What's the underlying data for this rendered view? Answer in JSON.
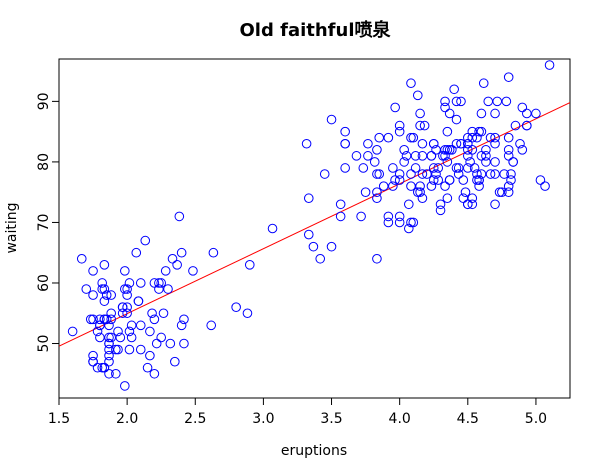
{
  "chart_data": {
    "type": "scatter",
    "title": "Old faithful喷泉",
    "xlabel": "eruptions",
    "ylabel": "waiting",
    "xlim": [
      1.5,
      5.25
    ],
    "ylim": [
      41,
      97
    ],
    "x_ticks": [
      1.5,
      2.0,
      2.5,
      3.0,
      3.5,
      4.0,
      4.5,
      5.0
    ],
    "x_tick_labels": [
      "1.5",
      "2.0",
      "2.5",
      "3.0",
      "3.5",
      "4.0",
      "4.5",
      "5.0"
    ],
    "y_ticks": [
      50,
      60,
      70,
      80,
      90
    ],
    "y_tick_labels": [
      "50",
      "60",
      "70",
      "80",
      "90"
    ],
    "grid": false,
    "point_color": "#0000ff",
    "fit_color": "#ff0000",
    "series": [
      {
        "x": [
          3.6,
          1.8,
          3.333,
          2.283,
          4.533,
          2.883,
          4.7,
          3.6,
          1.95,
          4.35,
          1.833,
          3.917,
          4.2,
          1.75,
          4.7,
          2.167,
          1.75,
          4.8,
          1.6,
          4.25,
          1.8,
          1.75,
          3.45,
          3.067,
          4.533,
          3.6,
          1.967,
          4.083,
          3.85,
          4.433,
          4.3,
          4.467,
          3.367,
          4.033,
          3.833,
          2.017,
          1.867,
          4.833,
          1.833,
          4.783,
          4.35,
          1.883,
          4.567,
          1.75,
          4.533,
          3.317,
          3.833,
          2.1,
          4.633,
          2.0,
          4.8,
          4.716,
          1.833,
          4.833,
          1.733,
          4.883,
          3.717,
          1.667,
          4.567,
          4.317,
          2.233,
          4.5,
          1.75,
          4.8,
          1.817,
          4.4,
          4.167,
          4.7,
          2.067,
          4.7,
          4.033,
          1.967,
          4.5,
          4.0,
          1.983,
          5.067,
          2.017,
          4.567,
          3.883,
          3.6,
          4.133,
          4.333,
          4.1,
          2.633,
          4.067,
          4.933,
          3.95,
          4.517,
          2.167,
          4.0,
          2.2,
          4.333,
          1.867,
          4.817,
          1.833,
          4.3,
          4.667,
          3.75,
          1.867,
          4.9,
          2.483,
          4.367,
          2.1,
          4.5,
          4.05,
          1.867,
          4.7,
          1.783,
          4.85,
          3.683,
          4.733,
          2.3,
          4.9,
          4.417,
          1.7,
          4.633,
          2.317,
          4.6,
          1.817,
          4.417,
          2.617,
          4.067,
          4.25,
          1.967,
          4.6,
          3.767,
          1.917,
          4.5,
          2.267,
          4.65,
          1.867,
          4.167,
          2.8,
          4.333,
          1.833,
          4.383,
          1.883,
          4.933,
          2.033,
          3.733,
          4.233,
          2.233,
          4.533,
          4.817,
          4.333,
          1.983,
          4.633,
          2.017,
          5.1,
          1.8,
          5.033,
          4.0,
          2.4,
          4.6,
          3.567,
          4.0,
          4.5,
          4.083,
          1.8,
          3.967,
          2.2,
          4.15,
          2.0,
          3.833,
          3.5,
          4.583,
          2.367,
          5.0,
          1.933,
          4.617,
          1.917,
          2.083,
          4.583,
          3.333,
          4.167,
          4.333,
          4.5,
          2.417,
          4.0,
          4.167,
          1.883,
          4.583,
          4.25,
          3.767,
          2.033,
          4.433,
          4.083,
          1.833,
          4.417,
          2.183,
          4.8,
          1.833,
          4.8,
          4.1,
          3.966,
          4.233,
          3.5,
          4.366,
          2.25,
          4.667,
          2.1,
          4.35,
          4.133,
          1.867,
          4.6,
          1.783,
          4.367,
          3.85,
          1.933,
          4.5,
          2.383,
          4.7,
          1.867,
          3.833,
          3.417,
          4.233,
          2.4,
          4.8,
          2.0,
          4.15,
          1.867,
          4.267,
          1.75,
          4.483,
          4.0,
          4.117,
          4.083,
          4.267,
          3.917,
          4.55,
          4.083,
          2.417,
          4.183,
          2.217,
          4.45,
          1.883,
          1.85,
          4.283,
          3.95,
          2.333,
          4.15,
          2.35,
          4.933,
          2.9,
          4.583,
          3.833,
          2.083,
          4.367,
          2.133,
          4.35,
          2.2,
          4.45,
          3.567,
          4.5,
          4.15,
          3.817,
          3.917,
          4.45,
          2.0,
          4.283,
          4.767,
          4.533,
          1.85,
          4.25,
          1.983,
          2.25,
          4.75,
          4.117,
          2.15,
          4.417,
          1.817,
          4.467
        ],
        "y": [
          79,
          54,
          74,
          62,
          85,
          55,
          88,
          85,
          51,
          85,
          54,
          84,
          78,
          47,
          83,
          52,
          62,
          84,
          52,
          79,
          51,
          47,
          78,
          69,
          74,
          83,
          55,
          76,
          78,
          79,
          73,
          77,
          66,
          80,
          74,
          52,
          48,
          80,
          59,
          90,
          80,
          58,
          84,
          58,
          73,
          83,
          64,
          53,
          82,
          59,
          75,
          90,
          54,
          80,
          54,
          83,
          71,
          64,
          77,
          81,
          59,
          84,
          48,
          82,
          60,
          92,
          78,
          78,
          65,
          73,
          82,
          56,
          79,
          71,
          62,
          76,
          60,
          78,
          76,
          83,
          75,
          82,
          70,
          65,
          73,
          88,
          76,
          80,
          48,
          86,
          60,
          90,
          50,
          78,
          63,
          72,
          84,
          75,
          51,
          82,
          62,
          88,
          49,
          83,
          81,
          47,
          84,
          52,
          86,
          81,
          75,
          59,
          89,
          79,
          59,
          81,
          50,
          85,
          59,
          87,
          53,
          69,
          77,
          56,
          88,
          81,
          45,
          82,
          55,
          90,
          45,
          83,
          56,
          89,
          46,
          82,
          51,
          86,
          53,
          79,
          81,
          60,
          82,
          77,
          76,
          59,
          80,
          49,
          96,
          53,
          77,
          77,
          65,
          81,
          71,
          70,
          81,
          93,
          53,
          89,
          45,
          86,
          58,
          78,
          66,
          76,
          63,
          88,
          52,
          93,
          49,
          57,
          77,
          68,
          81,
          81,
          73,
          50,
          85,
          74,
          55,
          77,
          83,
          83,
          51,
          78,
          84,
          46,
          83,
          55,
          81,
          57,
          76,
          84,
          77,
          81,
          87,
          77,
          51,
          78,
          60,
          82,
          91,
          53,
          78,
          46,
          77,
          84,
          49,
          83,
          71,
          80,
          49,
          75,
          64,
          76,
          53,
          94,
          55,
          76,
          50,
          82,
          54,
          75,
          78,
          79,
          78,
          78,
          70,
          79,
          70,
          54,
          86,
          50,
          90,
          54,
          54,
          77,
          79,
          64,
          75,
          47,
          86,
          63,
          85,
          82,
          57,
          82,
          67,
          74,
          54,
          83,
          73,
          73,
          88,
          80,
          71,
          83,
          56,
          79,
          78,
          84,
          58,
          83,
          43,
          60,
          75,
          81,
          46,
          90,
          46,
          74
        ]
      }
    ],
    "fit_line": {
      "intercept": 33.47,
      "slope": 10.73
    }
  }
}
